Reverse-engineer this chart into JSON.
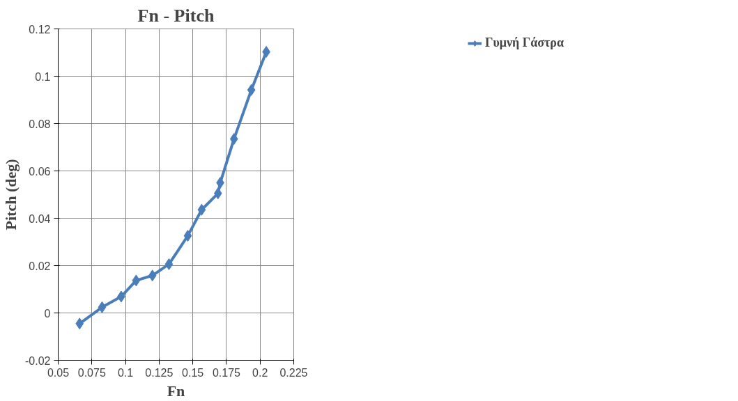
{
  "chart_data": {
    "type": "line",
    "title": "Fn - Pitch",
    "xlabel": "Fn",
    "ylabel": "Pitch (deg)",
    "x": [
      0.0659,
      0.0826,
      0.0968,
      0.1079,
      0.12,
      0.1323,
      0.1463,
      0.1566,
      0.1687,
      0.1704,
      0.1806,
      0.1935,
      0.2046
    ],
    "series": [
      {
        "name": "Γυμνή Γάστρα",
        "color": "#4a7ebb",
        "values": [
          -0.0045,
          0.0024,
          0.0069,
          0.0137,
          0.0158,
          0.0206,
          0.0326,
          0.0436,
          0.0505,
          0.055,
          0.0735,
          0.0942,
          0.1103
        ]
      }
    ],
    "xlim": [
      0.05,
      0.225
    ],
    "xticks": [
      0.05,
      0.075,
      0.1,
      0.125,
      0.15,
      0.175,
      0.2,
      0.225
    ],
    "ylim": [
      -0.02,
      0.12
    ],
    "yticks": [
      -0.02,
      0,
      0.02,
      0.04,
      0.06,
      0.08,
      0.1,
      0.12
    ],
    "grid": true,
    "legend": "top right",
    "marker": "diamond",
    "line_style": "solid"
  }
}
